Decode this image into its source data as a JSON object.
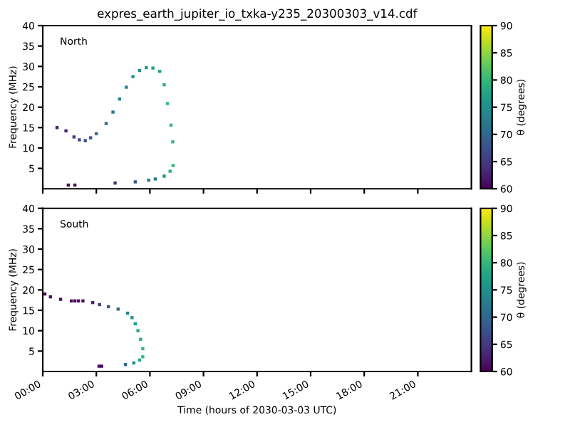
{
  "chart_data": [
    {
      "type": "scatter",
      "title": "expres_earth_jupiter_io_txka-y235_20300303_v14.cdf",
      "ylabel": "Frequency (MHz)",
      "clabel": "θ (degrees)",
      "annotations": [
        "North"
      ],
      "marker": "square",
      "tick_labels": "y",
      "grid": false,
      "legend": false,
      "xlim": [
        0,
        24
      ],
      "xticks": [
        {
          "value": 0,
          "label": null
        },
        {
          "value": 3,
          "label": null
        },
        {
          "value": 6,
          "label": null
        },
        {
          "value": 9,
          "label": null
        },
        {
          "value": 12,
          "label": null
        },
        {
          "value": 15,
          "label": null
        },
        {
          "value": 18,
          "label": null
        },
        {
          "value": 21,
          "label": null
        }
      ],
      "ylim": [
        0,
        40
      ],
      "yticks": [
        5,
        10,
        15,
        20,
        25,
        30,
        35,
        40
      ],
      "clim": [
        60,
        90
      ],
      "cticks": [
        60,
        65,
        70,
        75,
        80,
        85,
        90
      ],
      "x": [
        0.8,
        1.3,
        1.75,
        2.05,
        2.38,
        2.68,
        3.0,
        3.55,
        3.93,
        4.3,
        4.68,
        5.05,
        5.42,
        5.8,
        6.17,
        6.55,
        6.8,
        6.98,
        7.18,
        7.28,
        7.3,
        7.13,
        6.8,
        6.3,
        5.93,
        5.18,
        4.05,
        1.43,
        1.8
      ],
      "values": [
        15.0,
        14.2,
        12.7,
        12.0,
        11.8,
        12.5,
        13.5,
        16.0,
        18.8,
        22.0,
        24.9,
        27.5,
        29.0,
        29.7,
        29.6,
        28.8,
        25.5,
        20.9,
        15.6,
        11.5,
        5.7,
        4.3,
        3.1,
        2.4,
        2.1,
        1.7,
        1.4,
        0.9,
        0.9
      ],
      "cvalues": [
        62,
        63,
        65,
        66,
        67,
        68,
        70,
        71,
        72,
        73,
        74,
        75,
        75,
        76,
        77,
        78,
        79,
        80,
        80,
        80,
        80,
        79,
        76,
        73,
        71,
        68,
        64,
        61,
        61
      ]
    },
    {
      "type": "scatter",
      "xlabel": "Time (hours of 2030-03-03 UTC)",
      "ylabel": "Frequency (MHz)",
      "clabel": "θ (degrees)",
      "annotations": [
        "South"
      ],
      "marker": "square",
      "grid": false,
      "legend": false,
      "xlim": [
        0,
        24
      ],
      "xticks": [
        {
          "value": 0,
          "label": "00:00"
        },
        {
          "value": 3,
          "label": "03:00"
        },
        {
          "value": 6,
          "label": "06:00"
        },
        {
          "value": 9,
          "label": "09:00"
        },
        {
          "value": 12,
          "label": "12:00"
        },
        {
          "value": 15,
          "label": "15:00"
        },
        {
          "value": 18,
          "label": "18:00"
        },
        {
          "value": 21,
          "label": "21:00"
        }
      ],
      "ylim": [
        0,
        40
      ],
      "yticks": [
        5,
        10,
        15,
        20,
        25,
        30,
        35,
        40
      ],
      "clim": [
        60,
        90
      ],
      "cticks": [
        60,
        65,
        70,
        75,
        80,
        85,
        90
      ],
      "x": [
        0.12,
        0.43,
        1.0,
        1.6,
        1.8,
        2.0,
        2.25,
        2.8,
        3.18,
        3.68,
        4.22,
        4.75,
        5.0,
        5.18,
        5.33,
        5.48,
        5.6,
        5.6,
        5.42,
        5.1,
        4.63,
        3.15,
        3.3
      ],
      "values": [
        19.0,
        18.3,
        17.7,
        17.3,
        17.3,
        17.3,
        17.3,
        16.9,
        16.4,
        15.9,
        15.3,
        14.3,
        13.2,
        11.7,
        10.0,
        7.9,
        5.6,
        3.6,
        2.8,
        2.1,
        1.7,
        1.3,
        1.3
      ],
      "cvalues": [
        61,
        61,
        61,
        61,
        61,
        61,
        61,
        63,
        65,
        68,
        71,
        73,
        75,
        77,
        78,
        79,
        80,
        80,
        78,
        74,
        70,
        61,
        61
      ]
    }
  ]
}
